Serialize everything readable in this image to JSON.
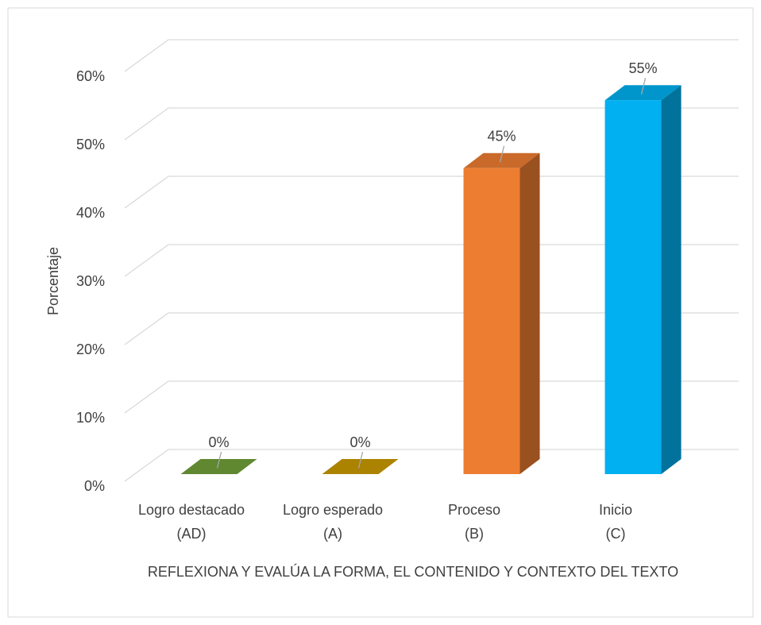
{
  "chart_data": {
    "type": "bar3d",
    "y_axis_label": "Porcentaje",
    "x_axis_label": "REFLEXIONA Y EVALÚA LA FORMA, EL CONTENIDO Y CONTEXTO DEL TEXTO",
    "categories": [
      [
        "Logro destacado",
        "(AD)"
      ],
      [
        "Logro esperado",
        "(A)"
      ],
      [
        "Proceso",
        "(B)"
      ],
      [
        "Inicio",
        "(C)"
      ]
    ],
    "values": [
      0,
      0,
      45,
      55
    ],
    "value_labels": [
      "0%",
      "0%",
      "45%",
      "55%"
    ],
    "colors": [
      "#70a03a",
      "#c99a00",
      "#ed7d31",
      "#00b0f0"
    ],
    "ylim": [
      0,
      60
    ],
    "yticks": [
      {
        "value": 0,
        "label": "0%"
      },
      {
        "value": 10,
        "label": "10%"
      },
      {
        "value": 20,
        "label": "20%"
      },
      {
        "value": 30,
        "label": "30%"
      },
      {
        "value": 40,
        "label": "40%"
      },
      {
        "value": 50,
        "label": "50%"
      },
      {
        "value": 60,
        "label": "60%"
      }
    ],
    "grid": true
  }
}
